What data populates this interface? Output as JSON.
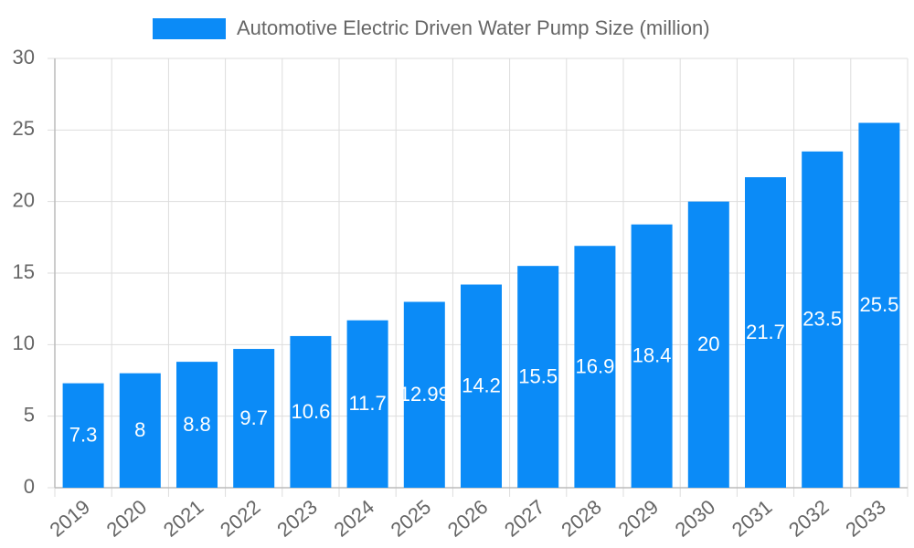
{
  "chart_data": {
    "type": "bar",
    "categories": [
      "2019",
      "2020",
      "2021",
      "2022",
      "2023",
      "2024",
      "2025",
      "2026",
      "2027",
      "2028",
      "2029",
      "2030",
      "2031",
      "2032",
      "2033"
    ],
    "series": [
      {
        "name": "Automotive Electric Driven Water Pump Size (million)",
        "color": "#0b8bf7",
        "values": [
          7.3,
          8,
          8.8,
          9.7,
          10.6,
          11.7,
          12.99,
          14.2,
          15.5,
          16.9,
          18.4,
          20,
          21.7,
          23.5,
          25.5
        ]
      }
    ],
    "ylim": [
      0,
      30
    ],
    "yticks": [
      0,
      5,
      10,
      15,
      20,
      25,
      30
    ],
    "grid": true,
    "legend": "top"
  }
}
